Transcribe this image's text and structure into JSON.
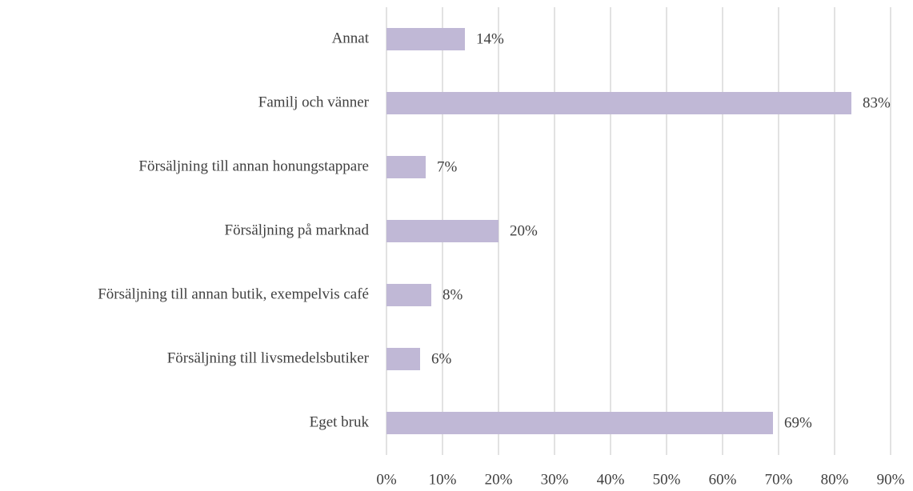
{
  "chart_data": {
    "type": "hbar",
    "categories": [
      "Annat",
      "Familj och vänner",
      "Försäljning till annan honungstappare",
      "Försäljning på marknad",
      "Försäljning till annan butik, exempelvis café",
      "Försäljning till livsmedelsbutiker",
      "Eget bruk"
    ],
    "values": [
      14,
      83,
      7,
      20,
      8,
      6,
      69
    ],
    "value_labels": [
      "14%",
      "83%",
      "7%",
      "20%",
      "8%",
      "6%",
      "69%"
    ],
    "color": "#c0b8d6",
    "xlim": [
      0,
      90
    ],
    "xticks": [
      {
        "value": 0,
        "label": "0%"
      },
      {
        "value": 10,
        "label": "10%"
      },
      {
        "value": 20,
        "label": "20%"
      },
      {
        "value": 30,
        "label": "30%"
      },
      {
        "value": 40,
        "label": "40%"
      },
      {
        "value": 50,
        "label": "50%"
      },
      {
        "value": 60,
        "label": "60%"
      },
      {
        "value": 70,
        "label": "70%"
      },
      {
        "value": 80,
        "label": "80%"
      },
      {
        "value": 90,
        "label": "90%"
      }
    ],
    "grid": true
  }
}
